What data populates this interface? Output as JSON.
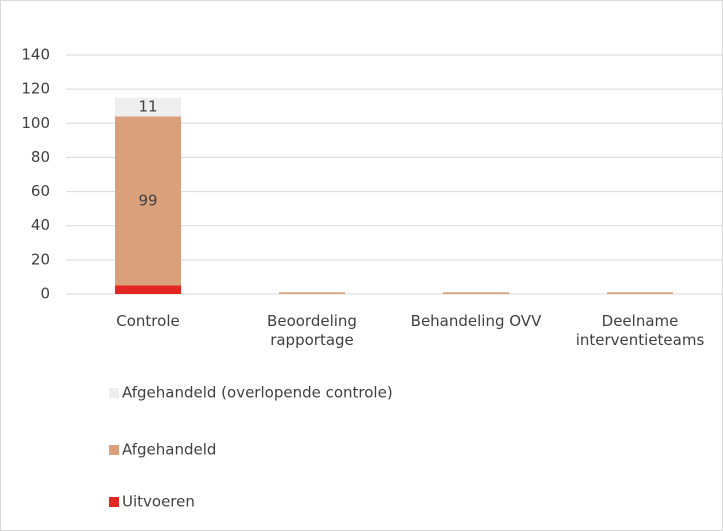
{
  "chart_data": {
    "type": "stacked_bar",
    "categories": [
      "Controle",
      "Beoordeling rapportage",
      "Behandeling OVV",
      "Deelname interventieteams"
    ],
    "series": [
      {
        "name": "Uitvoeren",
        "color": "#e3261f",
        "values": [
          5,
          0,
          0,
          0
        ],
        "value_labels": [
          null,
          null,
          null,
          null
        ]
      },
      {
        "name": "Afgehandeld",
        "color": "#d9a07b",
        "values": [
          99,
          1,
          1,
          1
        ],
        "value_labels": [
          "99",
          null,
          null,
          null
        ]
      },
      {
        "name": "Afgehandeld (overlopende controle)",
        "color": "#eeeeee",
        "values": [
          11,
          0,
          0,
          0
        ],
        "value_labels": [
          "11",
          null,
          null,
          null
        ]
      }
    ],
    "ylim": [
      0,
      140
    ],
    "yticks": [
      0,
      20,
      40,
      60,
      80,
      100,
      120,
      140
    ],
    "grid": true
  }
}
